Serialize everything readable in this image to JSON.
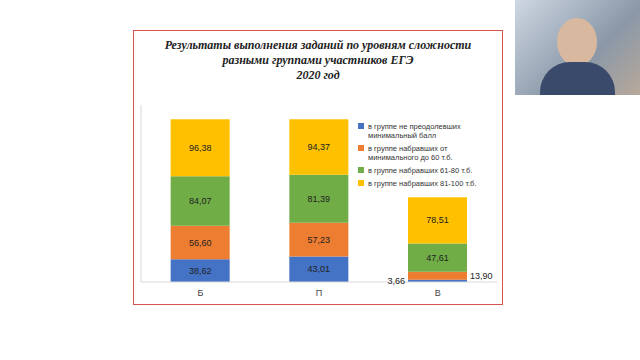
{
  "chart_data": {
    "type": "bar",
    "title": "Результаты выполнения заданий по уровням сложности\nразными группами участников ЕГЭ\n2020 год",
    "categories": [
      "Б",
      "П",
      "В"
    ],
    "stacked": true,
    "data_labels": true,
    "tick_labels": "x",
    "legend": "right",
    "ylim": [
      0,
      300
    ],
    "series": [
      {
        "name": "в группе не преодолевших минимальный  балл",
        "color": "#4472c4",
        "values": [
          38.62,
          43.01,
          3.66
        ],
        "value_labels": [
          "38,62",
          "43,01",
          "3,66"
        ]
      },
      {
        "name": "в группе набравших  от минимального  до 60 т.б.",
        "color": "#ed7d31",
        "values": [
          56.6,
          57.23,
          13.9
        ],
        "value_labels": [
          "56,60",
          "57,23",
          "13,90"
        ]
      },
      {
        "name": "в группе набравших  61-80 т.б.",
        "color": "#70ad47",
        "values": [
          84.07,
          81.39,
          47.61
        ],
        "value_labels": [
          "84,07",
          "81,39",
          "47,61"
        ]
      },
      {
        "name": "в группе набравших  81-100 т.б.",
        "color": "#ffc000",
        "values": [
          96.38,
          94.37,
          78.51
        ],
        "value_labels": [
          "96,38",
          "94,37",
          "78,51"
        ]
      }
    ]
  }
}
